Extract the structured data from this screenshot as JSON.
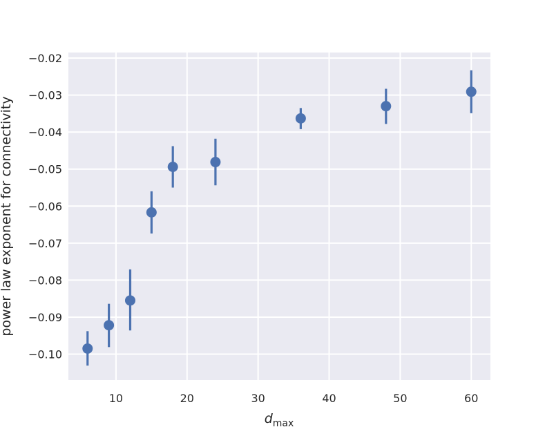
{
  "chart_data": {
    "type": "scatter",
    "xlabel": {
      "main": "d",
      "sub": "max"
    },
    "ylabel": "power law exponent for connectivity",
    "xlim": [
      3.3,
      62.7
    ],
    "ylim": [
      -0.107,
      -0.0185
    ],
    "xticks": [
      10,
      20,
      30,
      40,
      50,
      60
    ],
    "yticks": [
      -0.1,
      -0.09,
      -0.08,
      -0.07,
      -0.06,
      -0.05,
      -0.04,
      -0.03,
      -0.02
    ],
    "xtick_labels": [
      "10",
      "20",
      "30",
      "40",
      "50",
      "60"
    ],
    "ytick_labels": [
      "−0.10",
      "−0.09",
      "−0.08",
      "−0.07",
      "−0.06",
      "−0.05",
      "−0.04",
      "−0.03",
      "−0.02"
    ],
    "grid": true,
    "series": [
      {
        "color": "#4c72b0",
        "points": [
          {
            "x": 6,
            "y": -0.0985,
            "ylow": -0.1031,
            "yhigh": -0.0938
          },
          {
            "x": 9,
            "y": -0.0922,
            "ylow": -0.0981,
            "yhigh": -0.0864
          },
          {
            "x": 12,
            "y": -0.0855,
            "ylow": -0.0936,
            "yhigh": -0.0771
          },
          {
            "x": 15,
            "y": -0.0617,
            "ylow": -0.0674,
            "yhigh": -0.056
          },
          {
            "x": 18,
            "y": -0.0494,
            "ylow": -0.055,
            "yhigh": -0.0438
          },
          {
            "x": 24,
            "y": -0.0481,
            "ylow": -0.0544,
            "yhigh": -0.0418
          },
          {
            "x": 36,
            "y": -0.0363,
            "ylow": -0.0392,
            "yhigh": -0.0335
          },
          {
            "x": 48,
            "y": -0.033,
            "ylow": -0.0378,
            "yhigh": -0.0283
          },
          {
            "x": 60,
            "y": -0.0291,
            "ylow": -0.0349,
            "yhigh": -0.0233
          }
        ]
      }
    ]
  },
  "style": {
    "plot_background": "#eaeaf2",
    "grid_color": "#ffffff",
    "text_color": "#262626"
  }
}
